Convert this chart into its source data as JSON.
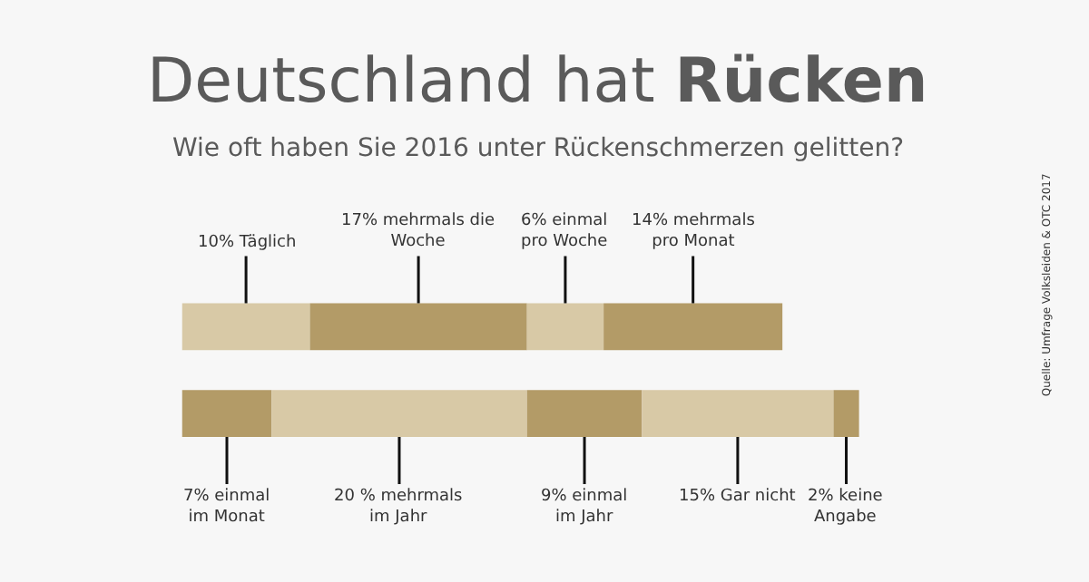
{
  "chart_data": {
    "type": "bar",
    "orientation": "horizontal",
    "stacked": true,
    "relative": false,
    "title": "Deutschland hat Rücken",
    "subtitle": "Wie oft haben Sie 2016 unter Rückenschmerzen gelitten?",
    "categories": [
      null,
      null
    ],
    "tick_labels": false,
    "series": [
      {
        "values": [
          10,
          7
        ],
        "colors": [
          "#d8c9a6",
          "#b39b67"
        ],
        "value_labels": [
          "10% Täglich",
          "7% einmal\nim Monat"
        ]
      },
      {
        "values": [
          17,
          20
        ],
        "colors": [
          "#b39b67",
          "#d8c9a6"
        ],
        "value_labels": [
          "17% mehrmals die\nWoche",
          "20 % mehrmals\nim Jahr"
        ]
      },
      {
        "values": [
          6,
          9
        ],
        "colors": [
          "#d8c9a6",
          "#b39b67"
        ],
        "value_labels": [
          "6% einmal\npro Woche",
          "9% einmal\nim Jahr"
        ]
      },
      {
        "values": [
          14,
          15
        ],
        "colors": [
          "#b39b67",
          "#d8c9a6"
        ],
        "value_labels": [
          "14% mehrmals\npro Monat",
          "15% Gar nicht"
        ]
      },
      {
        "values": [
          null,
          2
        ],
        "colors": [
          "#d8c9a6",
          "#b39b67"
        ],
        "value_labels": [
          null,
          "2% keine\nAngabe"
        ]
      }
    ],
    "annotations": [
      "Quelle: Umfrage Volksleiden & OTC 2017"
    ]
  }
}
